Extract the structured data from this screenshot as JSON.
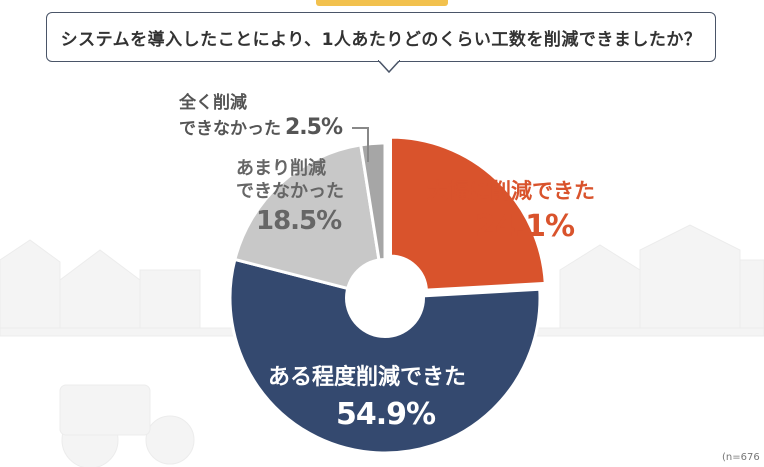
{
  "question": "システムを導入したことにより、1人あたりどのくらい工数を削減できましたか？",
  "footnote": "(n=676",
  "colors": {
    "large_reduction": "#d9532c",
    "some_reduction": "#34496f",
    "not_much": "#c8c8c8",
    "none": "#a6a6a6",
    "background_illustration": "#f3f3f3"
  },
  "chart_data": {
    "type": "pie",
    "variant": "donut",
    "title": "システムを導入したことにより、1人あたりどのくらい工数を削減できましたか？",
    "unit": "%",
    "slices": [
      {
        "label": "大幅に削減できた",
        "value": 24.1,
        "display": "24.1%",
        "color": "#d9532c",
        "exploded": true
      },
      {
        "label": "ある程度削減できた",
        "value": 54.9,
        "display": "54.9%",
        "color": "#34496f",
        "exploded": false
      },
      {
        "label": "あまり削減できなかった",
        "label_lines": [
          "あまり削減",
          "できなかった"
        ],
        "value": 18.5,
        "display": "18.5%",
        "color": "#c8c8c8",
        "exploded": false
      },
      {
        "label": "全く削減できなかった",
        "label_lines": [
          "全く削減",
          "できなかった"
        ],
        "value": 2.5,
        "display": "2.5%",
        "color": "#a6a6a6",
        "exploded": false
      }
    ]
  }
}
